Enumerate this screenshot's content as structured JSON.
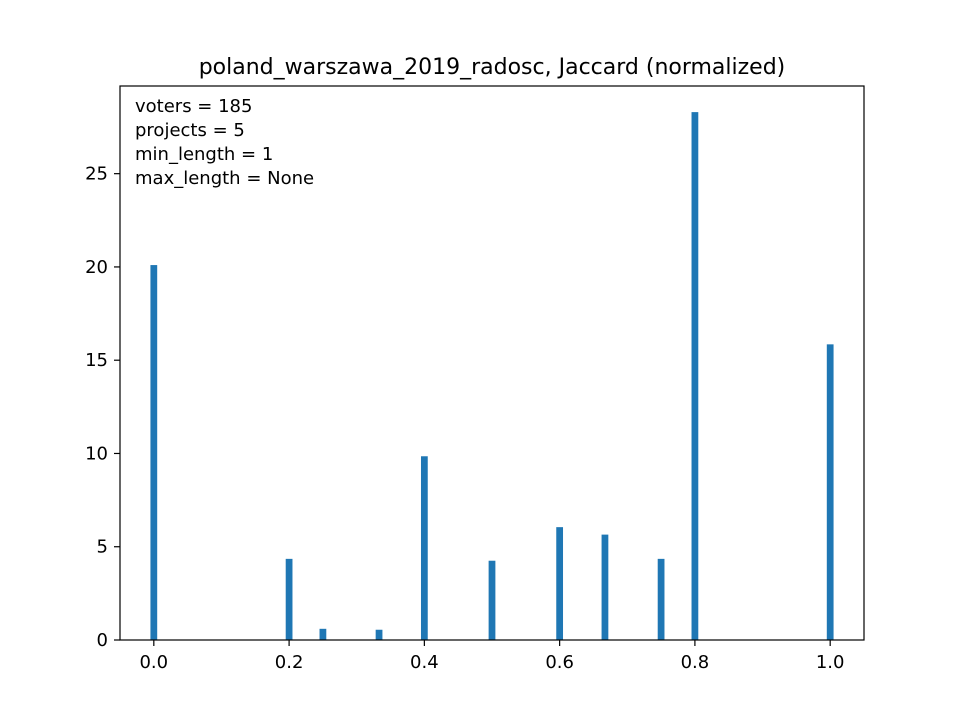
{
  "chart_data": {
    "type": "bar",
    "title": "poland_warszawa_2019_radosc, Jaccard (normalized)",
    "xlabel": "",
    "ylabel": "",
    "xlim": [
      -0.05,
      1.05
    ],
    "ylim": [
      0,
      29.7
    ],
    "x_ticks": [
      0.0,
      0.2,
      0.4,
      0.6,
      0.8,
      1.0
    ],
    "x_tick_labels": [
      "0.0",
      "0.2",
      "0.4",
      "0.6",
      "0.8",
      "1.0"
    ],
    "y_ticks": [
      0,
      5,
      10,
      15,
      20,
      25
    ],
    "y_tick_labels": [
      "0",
      "5",
      "10",
      "15",
      "20",
      "25"
    ],
    "bar_width": 0.01,
    "bar_color": "#1f77b4",
    "grid": false,
    "annotations": [
      "voters = 185",
      "projects = 5",
      "min_length = 1",
      "max_length = None"
    ],
    "x": [
      0.0,
      0.2,
      0.25,
      0.333,
      0.4,
      0.5,
      0.6,
      0.667,
      0.75,
      0.8,
      1.0
    ],
    "values": [
      20.1,
      4.35,
      0.6,
      0.55,
      9.85,
      4.25,
      6.05,
      5.65,
      4.35,
      28.3,
      15.85
    ]
  }
}
